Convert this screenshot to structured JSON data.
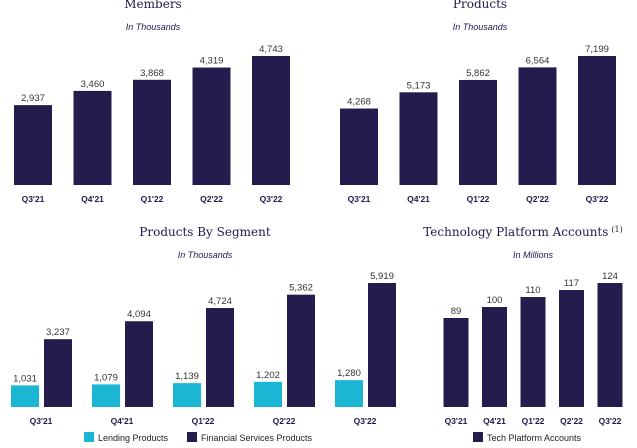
{
  "chart_data": [
    {
      "type": "bar",
      "title": "Members",
      "subtitle": "In Thousands",
      "categories": [
        "Q3'21",
        "Q4'21",
        "Q1'22",
        "Q2'22",
        "Q3'22"
      ],
      "values": [
        2937,
        3460,
        3868,
        4319,
        4743
      ],
      "labels": [
        "2,937",
        "3,460",
        "3,868",
        "4,319",
        "4,743"
      ],
      "color": "#231c4d"
    },
    {
      "type": "bar",
      "title": "Products",
      "subtitle": "In Thousands",
      "categories": [
        "Q3'21",
        "Q4'21",
        "Q1'22",
        "Q2'22",
        "Q3'22"
      ],
      "values": [
        4268,
        5173,
        5862,
        6564,
        7199
      ],
      "labels": [
        "4,268",
        "5,173",
        "5,862",
        "6,564",
        "7,199"
      ],
      "color": "#231c4d"
    },
    {
      "type": "bar",
      "title": "Products By Segment",
      "subtitle": "In Thousands",
      "categories": [
        "Q3'21",
        "Q4'21",
        "Q1'22",
        "Q2'22",
        "Q3'22"
      ],
      "series": [
        {
          "name": "Lending Products",
          "values": [
            1031,
            1079,
            1139,
            1202,
            1280
          ],
          "labels": [
            "1,031",
            "1,079",
            "1,139",
            "1,202",
            "1,280"
          ],
          "color": "#1ab6d3"
        },
        {
          "name": "Financial Services Products",
          "values": [
            3237,
            4094,
            4724,
            5362,
            5919
          ],
          "labels": [
            "3,237",
            "4,094",
            "4,724",
            "5,362",
            "5,919"
          ],
          "color": "#231c4d"
        }
      ]
    },
    {
      "type": "bar",
      "title": "Technology Platform Accounts",
      "title_sup": "(1)",
      "subtitle": "In Millions",
      "categories": [
        "Q3'21",
        "Q4'21",
        "Q1'22",
        "Q2'22",
        "Q3'22"
      ],
      "series": [
        {
          "name": "Tech Platform Accounts",
          "values": [
            89,
            100,
            110,
            117,
            124
          ],
          "labels": [
            "89",
            "100",
            "110",
            "117",
            "124"
          ],
          "color": "#231c4d"
        }
      ]
    }
  ]
}
